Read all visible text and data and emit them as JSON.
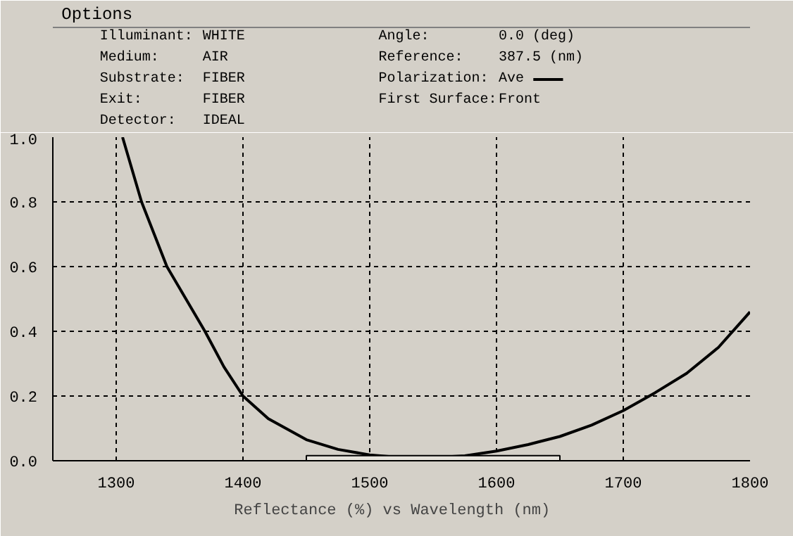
{
  "chart_data": {
    "type": "line",
    "xlabel": "Reflectance (%)  vs  Wavelength (nm)",
    "annotations": [
      "Options",
      "Illuminant:",
      "WHITE",
      "Medium:",
      "AIR",
      "Substrate:",
      "FIBER",
      "Exit:",
      "FIBER",
      "Detector:",
      "IDEAL",
      "Angle:",
      "0.0 (deg)",
      "Reference:",
      "387.5 (nm)",
      "Polarization:",
      "First Surface:",
      "Front"
    ],
    "x": [
      1305,
      1320,
      1340,
      1355,
      1370,
      1385,
      1400,
      1420,
      1450,
      1475,
      1500,
      1525,
      1550,
      1575,
      1600,
      1625,
      1650,
      1675,
      1700,
      1725,
      1750,
      1775,
      1800
    ],
    "series": [
      {
        "name": "Ave",
        "color": "#000000",
        "values": [
          1.0,
          0.8,
          0.6,
          0.5,
          0.4,
          0.29,
          0.2,
          0.13,
          0.065,
          0.035,
          0.018,
          0.01,
          0.01,
          0.015,
          0.03,
          0.05,
          0.075,
          0.11,
          0.155,
          0.21,
          0.27,
          0.35,
          0.46
        ]
      },
      {
        "type": "histogram",
        "color": "#e6e3dc",
        "bins": [
          1450,
          1650
        ],
        "values": [
          0.016
        ]
      }
    ],
    "xlim": [
      1250,
      1800
    ],
    "ylim": [
      0,
      1
    ],
    "xticks": [
      1300,
      1400,
      1500,
      1600,
      1700,
      1800
    ],
    "yticks": [
      {
        "value": 0,
        "label": "0.0"
      },
      0.2,
      0.4,
      0.6,
      0.8,
      {
        "value": 1,
        "label": "1.0"
      }
    ],
    "grid": true,
    "line_style": "solid",
    "marker": "none"
  }
}
